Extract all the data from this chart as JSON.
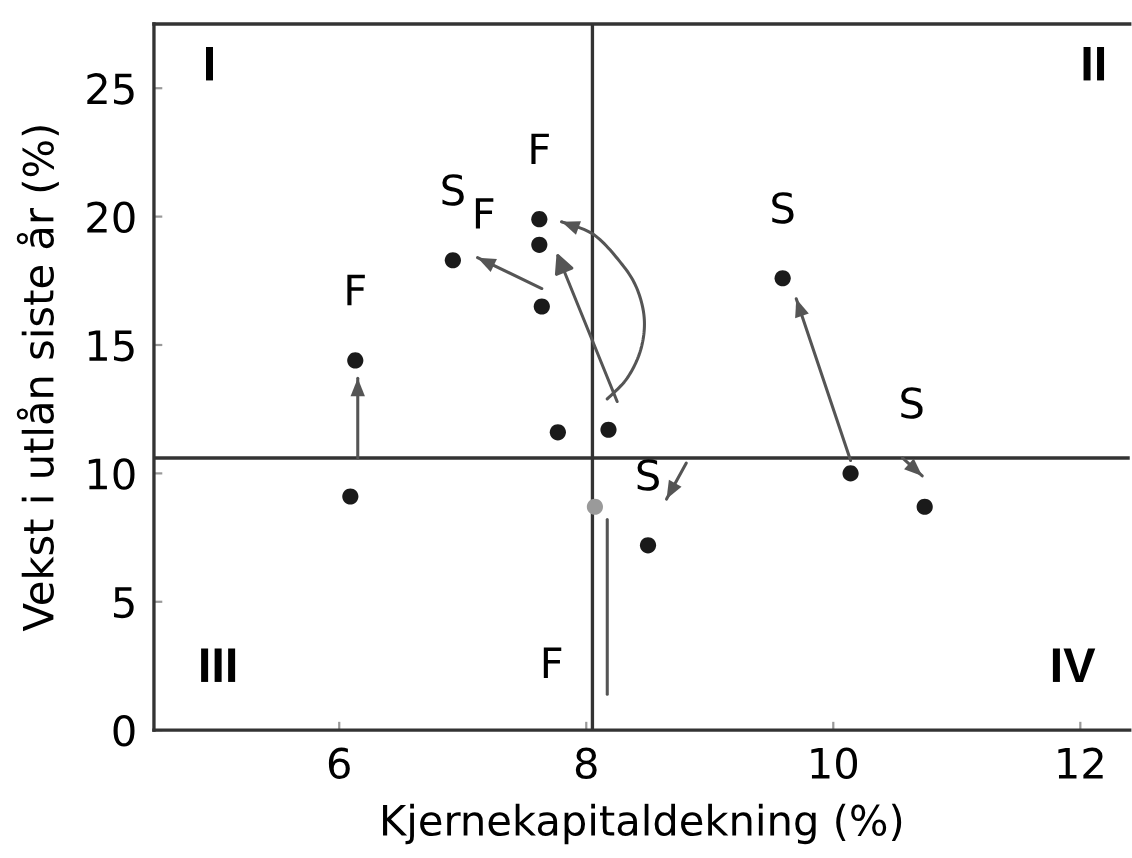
{
  "chart_data": {
    "type": "scatter",
    "xlabel": "Kjernekapitaldekning (%)",
    "ylabel": "Vekst i utlån siste år (%)",
    "xlim": [
      4.5,
      12.4
    ],
    "xticks": [
      6,
      8,
      10,
      12
    ],
    "ylim": [
      0,
      27.5
    ],
    "yticks": [
      0,
      5,
      10,
      15,
      20,
      25
    ],
    "ref_lines": [
      {
        "axis": "y",
        "value": 10.6,
        "color": "#333333"
      },
      {
        "axis": "x",
        "value": 8.05,
        "color": "#333333"
      }
    ],
    "series": [
      {
        "color": "#1a1a1a",
        "marker": "circle",
        "x": [
          6.13,
          6.92,
          7.64,
          7.62,
          7.62,
          7.77,
          8.18,
          6.09,
          8.07,
          10.14,
          10.74,
          8.5,
          9.59
        ],
        "values": [
          14.4,
          18.3,
          16.5,
          19.9,
          18.9,
          11.6,
          11.7,
          9.1,
          8.7,
          10.0,
          8.7,
          7.2,
          17.6
        ],
        "colors": [
          "#1a1a1a",
          "#1a1a1a",
          "#1a1a1a",
          "#1a1a1a",
          "#1a1a1a",
          "#1a1a1a",
          "#1a1a1a",
          "#1a1a1a",
          "#9a9a9a",
          "#1a1a1a",
          "#1a1a1a",
          "#1a1a1a",
          "#1a1a1a"
        ]
      },
      {
        "type": "line",
        "color": "#555555",
        "x": [
          6.15,
          6.15
        ],
        "values": [
          10.6,
          13.7
        ]
      },
      {
        "type": "line",
        "color": "#555555",
        "x": [
          7.64,
          7.12
        ],
        "values": [
          17.2,
          18.4
        ]
      },
      {
        "type": "line",
        "color": "#555555",
        "x": [
          8.17,
          8.33,
          8.44,
          8.47,
          8.41,
          8.28,
          8.06,
          7.8
        ],
        "values": [
          12.9,
          13.7,
          14.8,
          16.0,
          17.2,
          18.2,
          19.3,
          19.8
        ]
      },
      {
        "type": "line",
        "color": "#555555",
        "x": [
          10.14,
          9.7
        ],
        "values": [
          10.5,
          16.8
        ]
      },
      {
        "type": "line",
        "color": "#555555",
        "x": [
          8.81,
          8.65
        ],
        "values": [
          10.4,
          9.0
        ]
      },
      {
        "type": "line",
        "color": "#555555",
        "x": [
          10.56,
          10.72
        ],
        "values": [
          10.6,
          9.9
        ]
      },
      {
        "type": "line",
        "color": "#555555",
        "marker": "none",
        "x": [
          8.17,
          8.17
        ],
        "values": [
          8.2,
          1.4
        ]
      }
    ],
    "annotations": [
      "I",
      "II",
      "III",
      "IV",
      {
        "text": "F",
        "x": 6.13,
        "y": 14.4
      },
      {
        "text": "S",
        "x": 6.92,
        "y": 18.3
      },
      {
        "text": "F",
        "x": 7.62,
        "y": 19.9
      },
      {
        "text": "F",
        "x": 7.62,
        "y": 18.9
      },
      {
        "text": "S",
        "x": 9.59,
        "y": 17.6
      },
      {
        "text": "S",
        "x": 10.14,
        "y": 10.0
      },
      {
        "text": "S",
        "x": 8.5,
        "y": 7.2
      },
      {
        "text": "F",
        "x": 8.17,
        "y": 1.4
      }
    ]
  }
}
